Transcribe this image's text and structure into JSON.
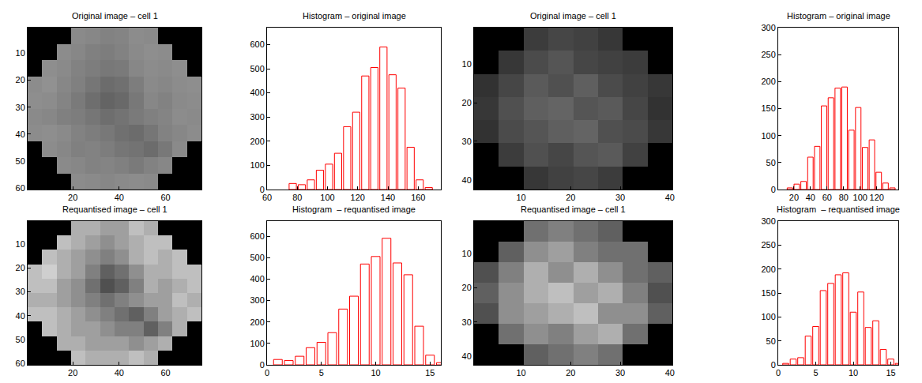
{
  "chart_data": [
    {
      "type": "heatmap",
      "title": "Original image – cell 1",
      "color": "gray",
      "zlim": [
        0,
        255
      ],
      "x": [
        3.625,
        9.875,
        16.125,
        22.375,
        28.625,
        34.875,
        41.125,
        47.375,
        53.625,
        59.875,
        66.125,
        72.375
      ],
      "y": [
        3.5,
        9.5,
        15.5,
        21.5,
        27.5,
        33.5,
        39.5,
        45.5,
        51.5,
        57.5
      ],
      "z": [
        [
          0,
          0,
          0,
          138,
          135,
          130,
          132,
          140,
          138,
          0,
          0,
          0
        ],
        [
          0,
          0,
          140,
          135,
          128,
          125,
          130,
          138,
          142,
          140,
          0,
          0
        ],
        [
          0,
          142,
          138,
          130,
          125,
          120,
          122,
          135,
          140,
          138,
          142,
          0
        ],
        [
          140,
          145,
          135,
          128,
          118,
          108,
          112,
          125,
          138,
          135,
          140,
          142
        ],
        [
          142,
          140,
          132,
          122,
          110,
          100,
          105,
          120,
          135,
          130,
          138,
          140
        ],
        [
          138,
          135,
          128,
          125,
          118,
          110,
          115,
          122,
          128,
          132,
          140,
          138
        ],
        [
          140,
          142,
          138,
          130,
          125,
          120,
          112,
          108,
          118,
          130,
          135,
          140
        ],
        [
          0,
          140,
          135,
          128,
          130,
          125,
          118,
          115,
          108,
          120,
          138,
          0
        ],
        [
          0,
          0,
          138,
          135,
          130,
          132,
          128,
          122,
          130,
          135,
          0,
          0
        ],
        [
          0,
          0,
          0,
          140,
          138,
          135,
          138,
          140,
          138,
          0,
          0,
          0
        ]
      ],
      "xlim": [
        0.5,
        75.5
      ],
      "ylim": [
        60.5,
        0.5
      ],
      "xticks": [
        20,
        40,
        60
      ],
      "yticks": [
        10,
        20,
        30,
        40,
        50,
        60
      ]
    },
    {
      "type": "histogram",
      "title": "Histogram – original image",
      "color": "#ff0000",
      "bins": [
        74,
        80,
        86,
        92,
        98,
        104,
        110,
        116,
        122,
        128,
        134,
        140,
        146,
        152,
        158,
        164,
        170
      ],
      "values": [
        25,
        20,
        40,
        80,
        105,
        150,
        260,
        320,
        470,
        505,
        590,
        475,
        420,
        175,
        40,
        8
      ],
      "xlim": [
        60,
        175
      ],
      "ylim": [
        0,
        670
      ],
      "xticks": [
        60,
        80,
        100,
        120,
        140,
        160
      ],
      "yticks": [
        0,
        100,
        200,
        300,
        400,
        500,
        600
      ]
    },
    {
      "type": "heatmap",
      "title": "Original image – cell 1",
      "color": "gray",
      "zlim": [
        0,
        255
      ],
      "x": [
        3,
        8,
        13,
        18,
        23,
        28,
        33,
        38
      ],
      "y": [
        3.5,
        9.5,
        15.5,
        21.5,
        27.5,
        33.5,
        39.5
      ],
      "z": [
        [
          0,
          0,
          60,
          70,
          65,
          55,
          0,
          0
        ],
        [
          0,
          55,
          75,
          85,
          70,
          65,
          60,
          0
        ],
        [
          50,
          70,
          90,
          80,
          95,
          75,
          65,
          55
        ],
        [
          55,
          80,
          95,
          100,
          85,
          90,
          70,
          50
        ],
        [
          50,
          75,
          85,
          95,
          100,
          80,
          75,
          55
        ],
        [
          0,
          60,
          80,
          70,
          85,
          90,
          65,
          0
        ],
        [
          0,
          0,
          55,
          65,
          70,
          60,
          0,
          0
        ]
      ],
      "xlim": [
        0.5,
        40.5
      ],
      "ylim": [
        42.5,
        0.5
      ],
      "xticks": [
        10,
        20,
        30,
        40
      ],
      "yticks": [
        10,
        20,
        30,
        40
      ]
    },
    {
      "type": "histogram",
      "title": "Histogram – original image",
      "color": "#ff0000",
      "bins": [
        11,
        19.25,
        27.5,
        35.75,
        44,
        52.25,
        60.5,
        68.75,
        77,
        85.25,
        93.5,
        101.75,
        110,
        118.25,
        126.5,
        134.75,
        143
      ],
      "values": [
        3,
        10,
        15,
        60,
        80,
        155,
        170,
        188,
        190,
        110,
        152,
        78,
        92,
        32,
        12,
        3
      ],
      "xlim": [
        1,
        146
      ],
      "ylim": [
        0,
        300
      ],
      "xticks": [
        20,
        40,
        60,
        80,
        100,
        120
      ],
      "yticks": [
        0,
        50,
        100,
        150,
        200,
        250,
        300
      ]
    },
    {
      "type": "heatmap",
      "title": "Requantised image – cell 1",
      "color": "gray",
      "zlim": [
        0,
        16
      ],
      "x": [
        3.625,
        9.875,
        16.125,
        22.375,
        28.625,
        34.875,
        41.125,
        47.375,
        53.625,
        59.875,
        66.125,
        72.375
      ],
      "y": [
        3.5,
        9.5,
        15.5,
        21.5,
        27.5,
        33.5,
        39.5,
        45.5,
        51.5,
        57.5
      ],
      "z": [
        [
          0,
          0,
          0,
          11,
          11,
          10,
          10,
          12,
          11,
          0,
          0,
          0
        ],
        [
          0,
          0,
          12,
          11,
          10,
          9,
          10,
          11,
          12,
          12,
          0,
          0
        ],
        [
          0,
          12,
          11,
          10,
          9,
          8,
          9,
          11,
          12,
          11,
          12,
          0
        ],
        [
          12,
          13,
          11,
          10,
          8,
          6,
          7,
          9,
          11,
          11,
          12,
          12
        ],
        [
          12,
          12,
          10,
          9,
          7,
          5,
          6,
          8,
          11,
          10,
          11,
          12
        ],
        [
          11,
          11,
          10,
          9,
          8,
          7,
          8,
          9,
          10,
          10,
          12,
          11
        ],
        [
          12,
          12,
          11,
          10,
          9,
          8,
          7,
          6,
          8,
          10,
          11,
          12
        ],
        [
          0,
          12,
          11,
          10,
          10,
          9,
          8,
          8,
          6,
          8,
          11,
          0
        ],
        [
          0,
          0,
          11,
          11,
          10,
          10,
          10,
          9,
          10,
          11,
          0,
          0
        ],
        [
          0,
          0,
          0,
          12,
          11,
          11,
          11,
          12,
          11,
          0,
          0,
          0
        ]
      ],
      "xlim": [
        0.5,
        75.5
      ],
      "ylim": [
        60.5,
        0.5
      ],
      "xticks": [
        20,
        40,
        60
      ],
      "yticks": [
        10,
        20,
        30,
        40,
        50,
        60
      ]
    },
    {
      "type": "histogram",
      "title": "Histogram  – requantised image",
      "color": "#ff0000",
      "bins": [
        0.5,
        1.5,
        2.5,
        3.5,
        4.5,
        5.5,
        6.5,
        7.5,
        8.5,
        9.5,
        10.5,
        11.5,
        12.5,
        13.5,
        14.5,
        15.5,
        16.5
      ],
      "values": [
        25,
        20,
        40,
        80,
        105,
        150,
        260,
        320,
        470,
        505,
        590,
        475,
        420,
        180,
        45,
        10
      ],
      "xlim": [
        0,
        16
      ],
      "ylim": [
        0,
        670
      ],
      "xticks": [
        0,
        5,
        10,
        15
      ],
      "yticks": [
        0,
        100,
        200,
        300,
        400,
        500,
        600
      ]
    },
    {
      "type": "heatmap",
      "title": "Requantised image – cell 1",
      "color": "gray",
      "zlim": [
        0,
        16
      ],
      "x": [
        3,
        8,
        13,
        18,
        23,
        28,
        33,
        38
      ],
      "y": [
        3.5,
        9.5,
        15.5,
        21.5,
        27.5,
        33.5,
        39.5
      ],
      "z": [
        [
          0,
          0,
          7,
          8,
          7,
          6,
          0,
          0
        ],
        [
          0,
          6,
          9,
          10,
          8,
          7,
          7,
          0
        ],
        [
          5,
          8,
          11,
          9,
          11,
          9,
          7,
          6
        ],
        [
          6,
          9,
          11,
          12,
          10,
          11,
          8,
          5
        ],
        [
          5,
          9,
          10,
          11,
          12,
          9,
          9,
          6
        ],
        [
          0,
          7,
          9,
          8,
          10,
          11,
          7,
          0
        ],
        [
          0,
          0,
          6,
          7,
          8,
          7,
          0,
          0
        ]
      ],
      "xlim": [
        0.5,
        40.5
      ],
      "ylim": [
        42.5,
        0.5
      ],
      "xticks": [
        10,
        20,
        30,
        40
      ],
      "yticks": [
        10,
        20,
        30,
        40
      ]
    },
    {
      "type": "histogram",
      "title": "Histogram  – requantised image",
      "color": "#ff0000",
      "bins": [
        0.5,
        1.5,
        2.5,
        3.5,
        4.5,
        5.5,
        6.5,
        7.5,
        8.5,
        9.5,
        10.5,
        11.5,
        12.5,
        13.5,
        14.5,
        15.5,
        16.5
      ],
      "values": [
        3,
        12,
        15,
        60,
        80,
        155,
        170,
        188,
        192,
        110,
        152,
        78,
        92,
        32,
        12,
        3
      ],
      "xlim": [
        0,
        16
      ],
      "ylim": [
        0,
        300
      ],
      "xticks": [
        0,
        5,
        10,
        15
      ],
      "yticks": [
        0,
        50,
        100,
        150,
        200,
        250,
        300
      ]
    }
  ]
}
